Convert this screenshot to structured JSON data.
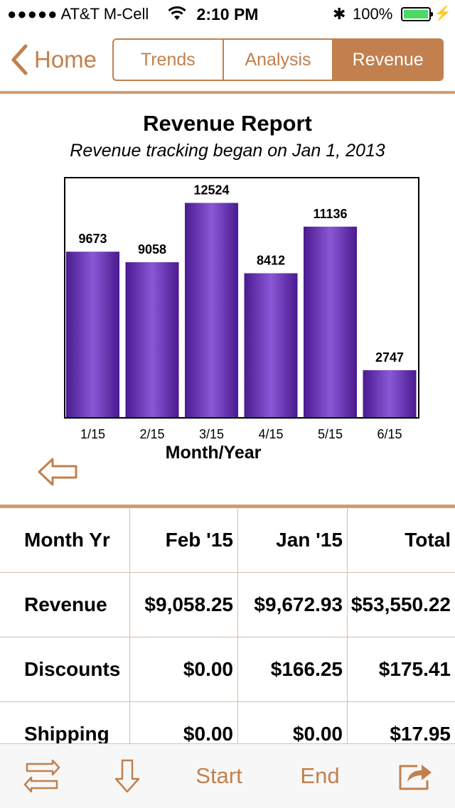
{
  "status_bar": {
    "signal_dots": "●●●●●",
    "carrier": "AT&T M-Cell",
    "time": "2:10 PM",
    "battery": "100%",
    "bluetooth_glyph": "✱",
    "charging_glyph": "⚡"
  },
  "nav": {
    "back_label": "Home",
    "tabs": [
      {
        "label": "Trends",
        "active": false
      },
      {
        "label": "Analysis",
        "active": false
      },
      {
        "label": "Revenue",
        "active": true
      }
    ]
  },
  "report": {
    "title": "Revenue Report",
    "subtitle": "Revenue tracking began on Jan 1, 2013"
  },
  "chart_data": {
    "type": "bar",
    "categories": [
      "1/15",
      "2/15",
      "3/15",
      "4/15",
      "5/15",
      "6/15"
    ],
    "values": [
      9673,
      9058,
      12524,
      8412,
      11136,
      2747
    ],
    "xlabel": "Month/Year",
    "ylabel": "",
    "ylim": [
      0,
      14000
    ],
    "data_labels": true,
    "bar_color": "#7a3fc4",
    "grid": false
  },
  "table": {
    "header": [
      "Month Yr",
      "Feb '15",
      "Jan '15",
      "Total"
    ],
    "rows": [
      [
        "Revenue",
        "$9,058.25",
        "$9,672.93",
        "$53,550.22"
      ],
      [
        "Discounts",
        "$0.00",
        "$166.25",
        "$175.41"
      ],
      [
        "Shipping",
        "$0.00",
        "$0.00",
        "$17.95"
      ]
    ]
  },
  "toolbar": {
    "start_label": "Start",
    "end_label": "End"
  },
  "colors": {
    "accent": "#c1804d",
    "divider": "#d29c6d",
    "bar": "#7a3fc4"
  }
}
